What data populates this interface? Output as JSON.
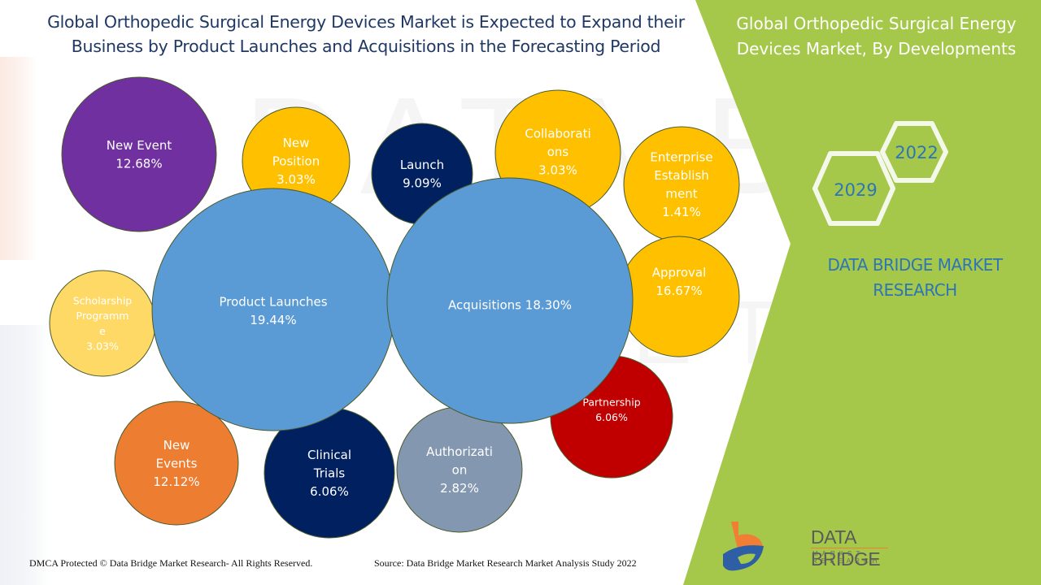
{
  "header": {
    "title": "Global Orthopedic Surgical Energy Devices Market is Expected to Expand their Business by Product Launches and Acquisitions in the Forecasting Period"
  },
  "side_panel": {
    "title": "Global Orthopedic Surgical Energy Devices Market, By Developments",
    "years": [
      "2022",
      "2029"
    ],
    "brand_text": "DATA BRIDGE MARKET RESEARCH",
    "logo_name": "DATA BRIDGE",
    "logo_sub": "MARKET RESEARCH",
    "accent_color": "#a5c84a"
  },
  "watermark": {
    "line1": "DATA BRIDGE",
    "line2": "MARKET RESEARCH"
  },
  "footer": {
    "copyright": "DMCA Protected © Data Bridge Market Research- All Rights Reserved.",
    "source": "Source: Data Bridge Market Research Market Analysis Study 2022"
  },
  "chart_data": {
    "type": "bubble",
    "title": "Global Orthopedic Surgical Energy Devices Market, By Developments",
    "unit": "%",
    "items": [
      {
        "name": "New Event",
        "lines": [
          "New Event"
        ],
        "value": 12.68,
        "color": "#7030a0"
      },
      {
        "name": "New Position",
        "lines": [
          "New",
          "Position"
        ],
        "value": 3.03,
        "color": "#ffc000"
      },
      {
        "name": "Launch",
        "lines": [
          "Launch"
        ],
        "value": 9.09,
        "color": "#002060"
      },
      {
        "name": "Collaborations",
        "lines": [
          "Collaborati",
          "ons"
        ],
        "value": 3.03,
        "color": "#ffc000"
      },
      {
        "name": "Enterprise Establishment",
        "lines": [
          "Enterprise",
          "Establish",
          "ment"
        ],
        "value": 1.41,
        "color": "#ffc000"
      },
      {
        "name": "Approval",
        "lines": [
          "Approval"
        ],
        "value": 16.67,
        "color": "#ffc000"
      },
      {
        "name": "Scholarship Programme",
        "lines": [
          "Scholarship",
          "Programm",
          "e"
        ],
        "value": 3.03,
        "color": "#ffd966"
      },
      {
        "name": "Product Launches",
        "lines": [
          "Product Launches"
        ],
        "value": 19.44,
        "color": "#5b9bd5"
      },
      {
        "name": "Acquisitions",
        "lines": [
          "Acquisitions 18.30%"
        ],
        "value": 18.3,
        "color": "#5b9bd5",
        "inline_value": true
      },
      {
        "name": "Partnership",
        "lines": [
          "Partnership"
        ],
        "value": 6.06,
        "color": "#c00000"
      },
      {
        "name": "New Events",
        "lines": [
          "New",
          "Events"
        ],
        "value": 12.12,
        "color": "#ed7d31"
      },
      {
        "name": "Clinical Trials",
        "lines": [
          "Clinical",
          "Trials"
        ],
        "value": 6.06,
        "color": "#002060"
      },
      {
        "name": "Authorization",
        "lines": [
          "Authorizati",
          "on"
        ],
        "value": 2.82,
        "color": "#8497b0"
      }
    ]
  }
}
